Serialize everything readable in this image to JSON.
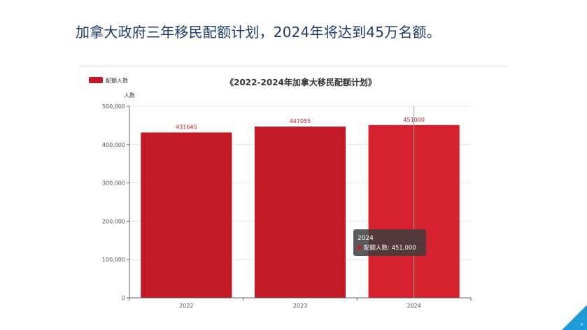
{
  "slide": {
    "title": "加拿大政府三年移民配额计划，2024年将达到45万名额。",
    "page_number": "4"
  },
  "colors": {
    "bar_default": "#c21b27",
    "bar_highlight": "#d6222e",
    "title_text": "#1a3a6b",
    "accent_triangle": "#1e9bd8"
  },
  "tooltip": {
    "year": "2024",
    "label": "配额人数: 451,000"
  },
  "chart_data": {
    "type": "bar",
    "title": "《2022-2024年加拿大移民配额计划》",
    "categories": [
      "2022",
      "2023",
      "2024"
    ],
    "series": [
      {
        "name": "配额人数",
        "values": [
          431645,
          447055,
          451000
        ]
      }
    ],
    "data_labels": [
      "431645",
      "447055",
      "451000"
    ],
    "ylabel": "人数",
    "xlabel": "",
    "ylim": [
      0,
      500000
    ],
    "yticks": [
      0,
      100000,
      200000,
      300000,
      400000,
      500000
    ],
    "ytick_labels": [
      "0",
      "100,000",
      "200,000",
      "300,000",
      "400,000",
      "500,000"
    ],
    "highlighted_index": 2,
    "legend_position": "top-left",
    "grid": true
  }
}
